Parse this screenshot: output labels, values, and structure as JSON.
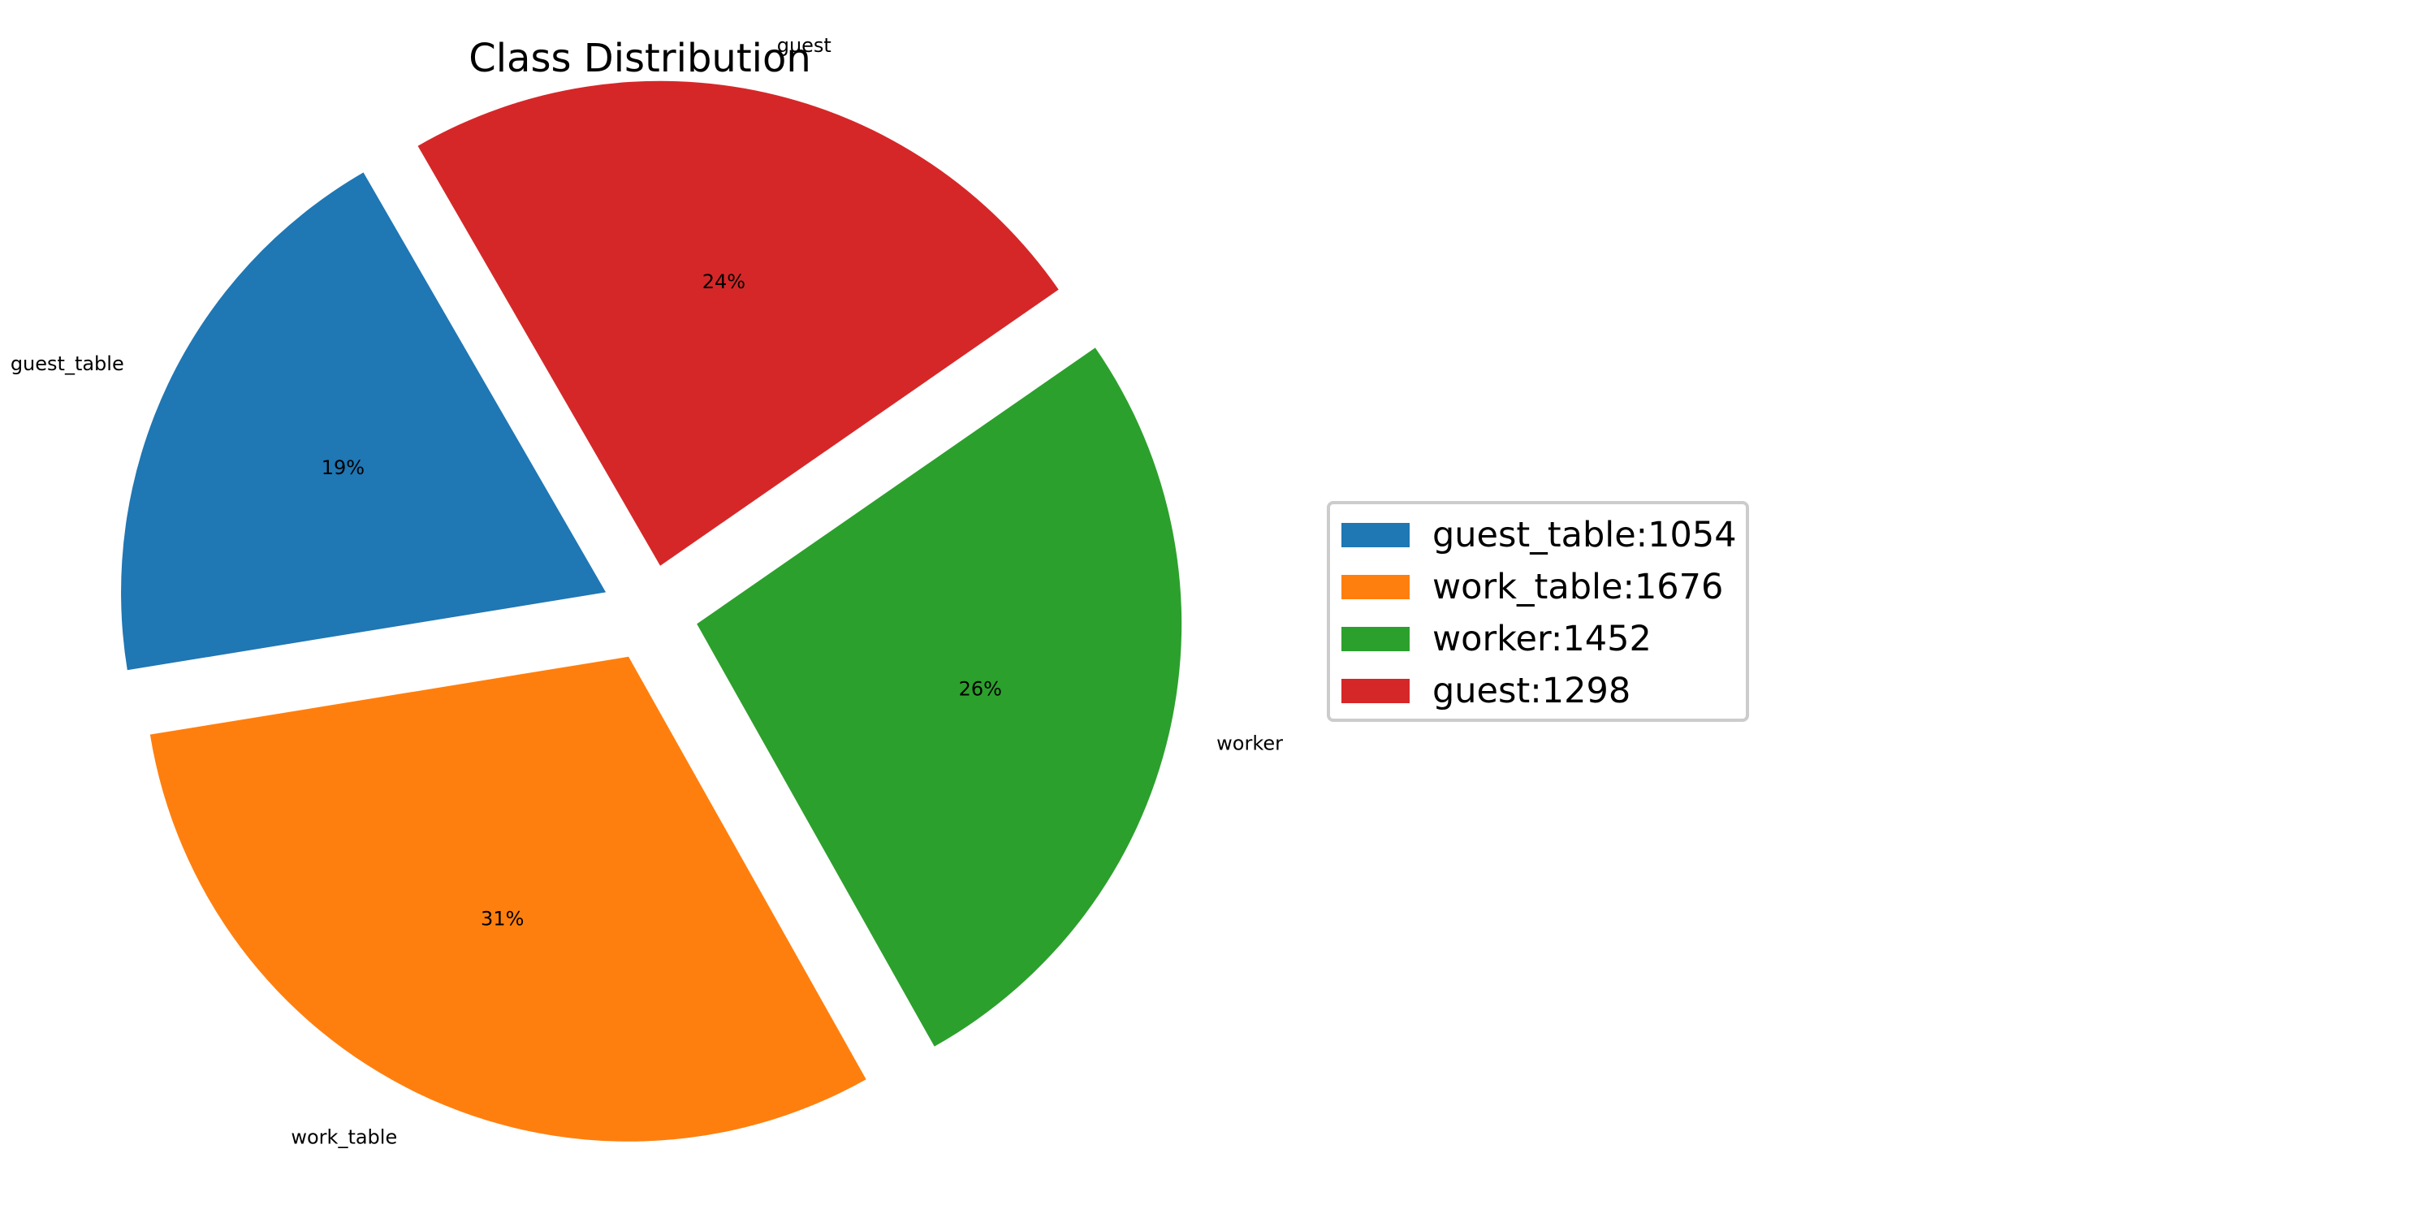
{
  "chart_data": {
    "type": "pie",
    "title": "Class Distribution",
    "start_angle_deg": 120,
    "direction": "counterclockwise",
    "exploded": true,
    "legend_position": "right",
    "slices": [
      {
        "label": "guest_table",
        "value": 1054,
        "pct_label": "19%",
        "legend_label": "guest_table:1054",
        "color": "#1f77b4"
      },
      {
        "label": "work_table",
        "value": 1676,
        "pct_label": "31%",
        "legend_label": "work_table:1676",
        "color": "#ff7f0e"
      },
      {
        "label": "worker",
        "value": 1452,
        "pct_label": "26%",
        "legend_label": "worker:1452",
        "color": "#2ca02c"
      },
      {
        "label": "guest",
        "value": 1298,
        "pct_label": "24%",
        "legend_label": "guest:1298",
        "color": "#d62728"
      }
    ]
  }
}
